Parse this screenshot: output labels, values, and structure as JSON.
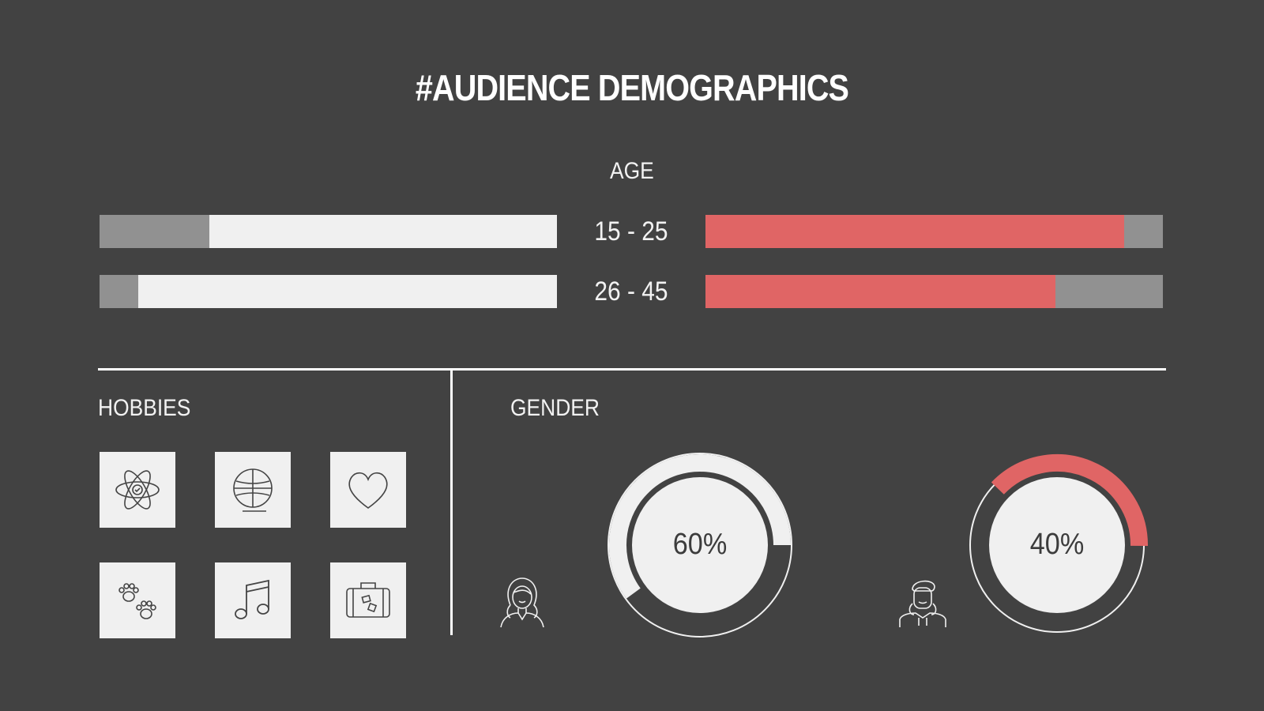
{
  "title": "#AUDIENCE DEMOGRAPHICS",
  "age": {
    "label": "AGE",
    "rows": [
      {
        "label": "15 - 25",
        "left_fraction": 0.76,
        "right_fraction": 0.915
      },
      {
        "label": "26 - 45",
        "left_fraction": 0.915,
        "right_fraction": 0.765
      }
    ]
  },
  "hobbies": {
    "label": "HOBBIES",
    "icons": [
      "atom-icon",
      "ball-icon",
      "heart-icon",
      "paws-icon",
      "music-note-icon",
      "suitcase-icon"
    ]
  },
  "gender": {
    "label": "GENDER",
    "female": {
      "percent_label": "60%",
      "value": 0.6,
      "icon": "woman-icon"
    },
    "male": {
      "percent_label": "40%",
      "value": 0.4,
      "icon": "man-icon"
    }
  },
  "chart_data": {
    "type": "bar",
    "title": "#AUDIENCE DEMOGRAPHICS",
    "categories": [
      "15 - 25",
      "26 - 45"
    ],
    "series": [
      {
        "values": [
          76,
          91.5
        ]
      },
      {
        "values": [
          91.5,
          76.5
        ]
      }
    ],
    "gender_split": {
      "categories": [
        "female",
        "male"
      ],
      "values": [
        60,
        40
      ]
    }
  },
  "colors": {
    "background": "#424242",
    "accent": "#e06565",
    "light": "#f0f0f0",
    "track": "#919191"
  }
}
